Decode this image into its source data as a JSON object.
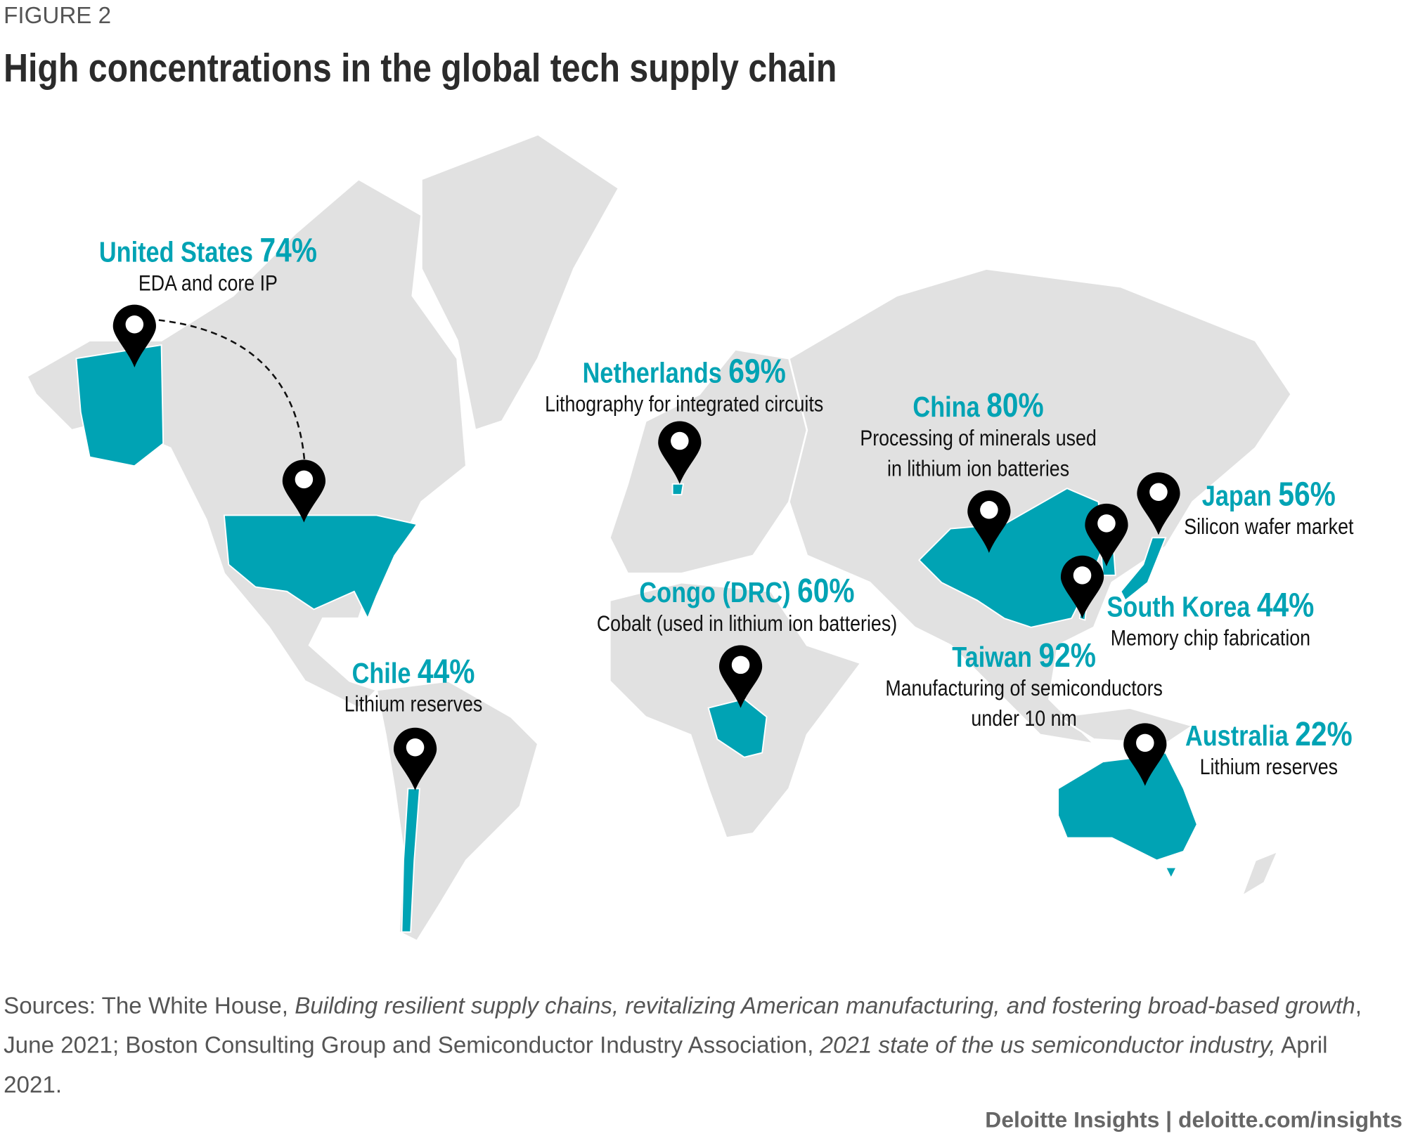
{
  "figure_label": "FIGURE 2",
  "title": "High concentrations in the global tech supply chain",
  "colors": {
    "highlight": "#00a3b4",
    "land": "#e1e1e1",
    "pin": "#000000"
  },
  "callouts": [
    {
      "country": "United States",
      "percent": "74%",
      "desc": [
        "EDA and core IP"
      ]
    },
    {
      "country": "Netherlands",
      "percent": "69%",
      "desc": [
        "Lithography for integrated circuits"
      ]
    },
    {
      "country": "China",
      "percent": "80%",
      "desc": [
        "Processing of minerals used",
        "in lithium ion batteries"
      ]
    },
    {
      "country": "Japan",
      "percent": "56%",
      "desc": [
        "Silicon wafer market"
      ]
    },
    {
      "country": "South Korea",
      "percent": "44%",
      "desc": [
        "Memory chip fabrication"
      ]
    },
    {
      "country": "Taiwan",
      "percent": "92%",
      "desc": [
        "Manufacturing of semiconductors",
        "under 10 nm"
      ]
    },
    {
      "country": "Congo (DRC)",
      "percent": "60%",
      "desc": [
        "Cobalt (used in lithium ion batteries)"
      ]
    },
    {
      "country": "Chile",
      "percent": "44%",
      "desc": [
        "Lithium reserves"
      ]
    },
    {
      "country": "Australia",
      "percent": "22%",
      "desc": [
        "Lithium reserves"
      ]
    }
  ],
  "sources": {
    "p1": "Sources: The White House, ",
    "t1": "Building resilient supply chains, revitalizing American manufacturing, and fostering broad-based growth",
    "p2": ", June 2021; Boston Consulting Group and Semiconductor Industry Association, ",
    "t2": "2021 state of the us semiconductor industry,",
    "p3": " April 2021."
  },
  "credit": "Deloitte Insights | deloitte.com/insights"
}
